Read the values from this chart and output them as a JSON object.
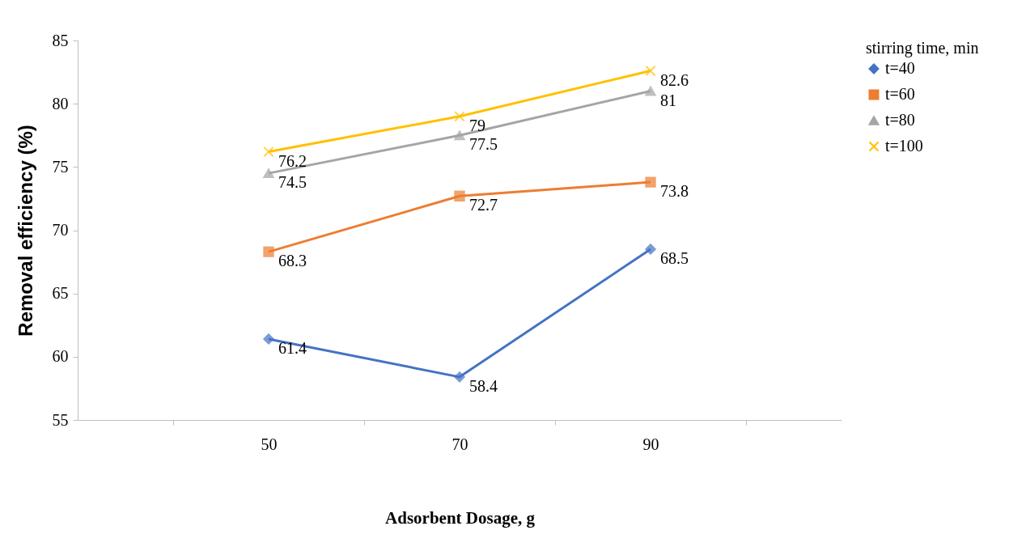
{
  "chart_data": {
    "type": "line",
    "categories": [
      "50",
      "70",
      "90"
    ],
    "series": [
      {
        "name": "t=40",
        "color": "#4472c4",
        "marker": "diamond",
        "values": [
          61.4,
          58.4,
          68.5
        ]
      },
      {
        "name": "t=60",
        "color": "#ed7d31",
        "marker": "square",
        "values": [
          68.3,
          72.7,
          73.8
        ]
      },
      {
        "name": "t=80",
        "color": "#a5a5a5",
        "marker": "triangle",
        "values": [
          74.5,
          77.5,
          81
        ]
      },
      {
        "name": "t=100",
        "color": "#ffc000",
        "marker": "cross",
        "values": [
          76.2,
          79,
          82.6
        ]
      }
    ],
    "xlabel": "Adsorbent Dosage, g",
    "ylabel": "Removal efficiency (%)",
    "legend_title": "stirring time, min",
    "ylim": [
      55,
      85
    ],
    "yticks": [
      55,
      60,
      65,
      70,
      75,
      80,
      85
    ],
    "grid": false,
    "legend": "right",
    "data_labels": true,
    "line_style": "solid"
  }
}
